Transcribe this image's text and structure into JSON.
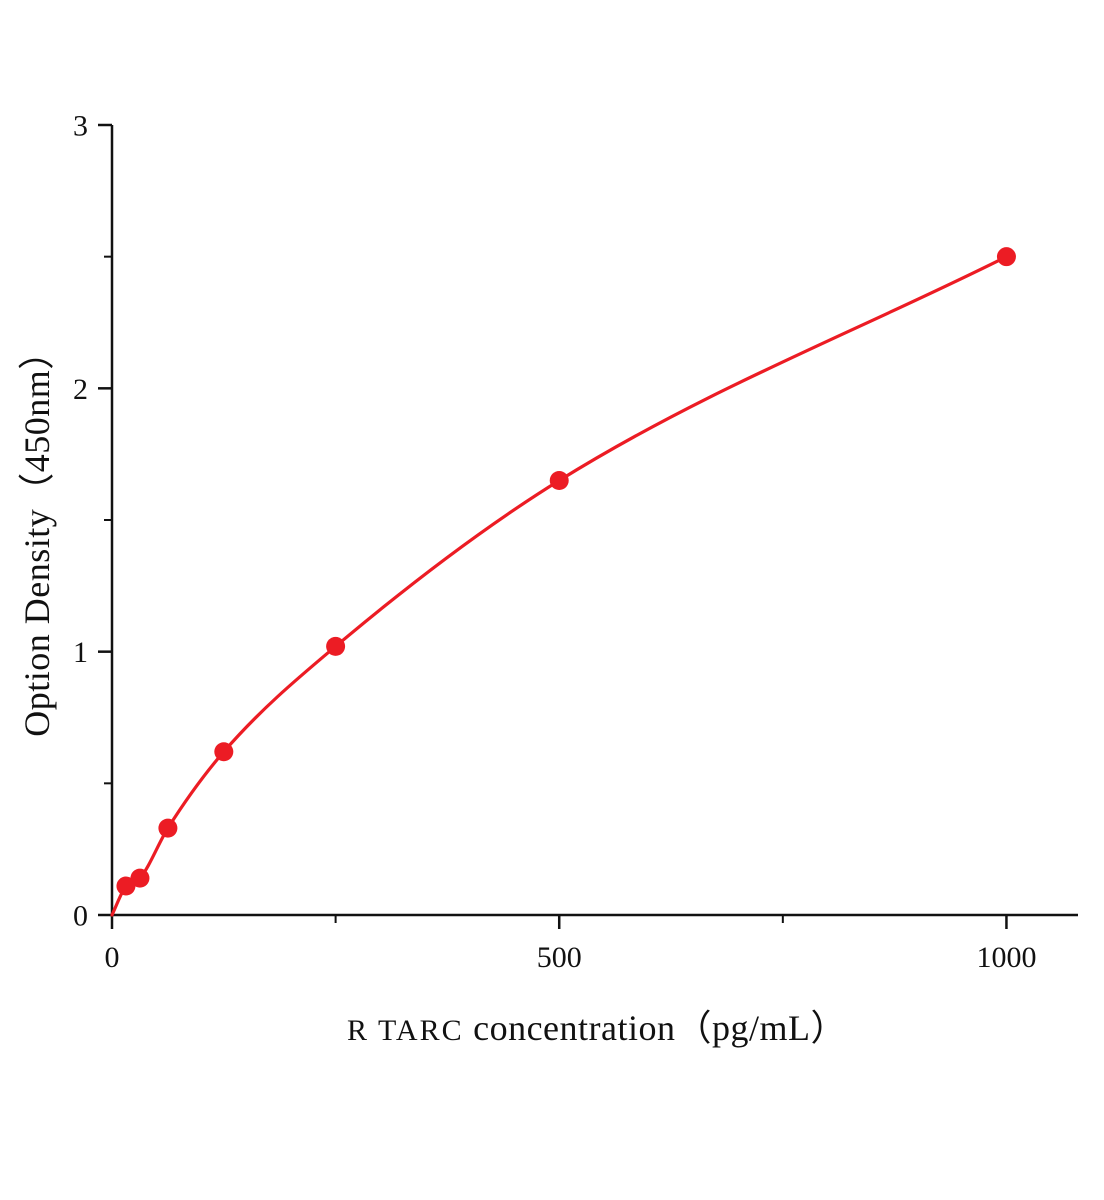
{
  "chart": {
    "y_axis_label": "Option Density（450nm）",
    "x_axis_label_prefix": "R TARC",
    "x_axis_label_rest": "  concentration（pg/mL）"
  },
  "chart_data": {
    "type": "line",
    "title": "",
    "xlabel": "R TARC concentration（pg/mL）",
    "ylabel": "Option Density（450nm）",
    "x": [
      15.6,
      31.25,
      62.5,
      125,
      250,
      500,
      1000
    ],
    "y": [
      0.11,
      0.14,
      0.33,
      0.62,
      1.02,
      1.65,
      2.5
    ],
    "curve_start": [
      0,
      0
    ],
    "xlim": [
      0,
      1080
    ],
    "ylim": [
      0,
      3
    ],
    "x_major_ticks": [
      0,
      500,
      1000
    ],
    "x_minor_ticks": [
      250,
      750
    ],
    "y_major_ticks": [
      0,
      1,
      2,
      3
    ],
    "y_minor_ticks": [
      0.5,
      1.5,
      2.5
    ],
    "series_color": "#ec1c24",
    "axis_color": "#111111",
    "marker": "circle",
    "marker_radius": 9.5,
    "line_width": 3.2,
    "grid": false,
    "legend": null
  }
}
